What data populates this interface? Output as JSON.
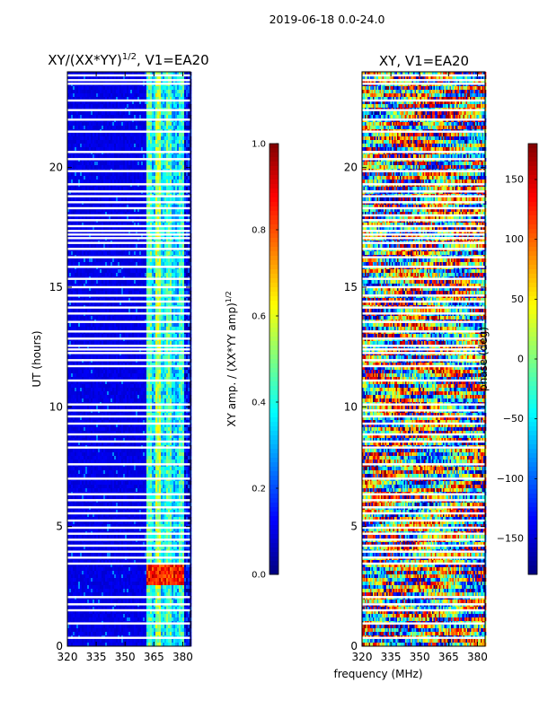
{
  "suptitle": "2019-06-18 0.0-24.0",
  "colors": {
    "jet": [
      "#00007f",
      "#0000ff",
      "#007fff",
      "#00ffff",
      "#7fff7f",
      "#ffff00",
      "#ff7f00",
      "#ff0000",
      "#7f0000"
    ],
    "frame": "#000000",
    "gap": "#ffffff"
  },
  "chart_data": [
    {
      "type": "heatmap",
      "title": "XY/(XX*YY)",
      "title_sup": "1/2",
      "title_suffix": ", V1=EA20",
      "xlabel": "",
      "ylabel": "UT (hours)",
      "xlim": [
        320,
        384
      ],
      "ylim": [
        0,
        24
      ],
      "xticks": [
        320,
        335,
        350,
        365,
        380
      ],
      "yticks": [
        0,
        5,
        10,
        15,
        20
      ],
      "colorbar": {
        "label": "XY amp. / (XX*YY amp)",
        "label_sup": "1/2",
        "range": [
          0.0,
          1.0
        ],
        "ticks": [
          "0.0",
          "0.2",
          "0.4",
          "0.6",
          "0.8",
          "1.0"
        ],
        "tick_values": [
          0.0,
          0.2,
          0.4,
          0.6,
          0.8,
          1.0
        ]
      },
      "band_edges_mhz": [
        320,
        361,
        364,
        366,
        369,
        371,
        374,
        378,
        381,
        384
      ],
      "band_levels": [
        0.1,
        0.45,
        0.32,
        0.55,
        0.35,
        0.45,
        0.32,
        0.42,
        0.12
      ],
      "flare": {
        "ut_range": [
          2.6,
          3.4
        ],
        "mhz_range": [
          361,
          381
        ],
        "value": 0.85
      }
    },
    {
      "type": "heatmap",
      "title": "XY, V1=EA20",
      "xlabel": "frequency (MHz)",
      "ylabel": "",
      "xlim": [
        320,
        384
      ],
      "ylim": [
        0,
        24
      ],
      "xticks": [
        320,
        335,
        350,
        365,
        380
      ],
      "yticks": [
        0,
        5,
        10,
        15,
        20
      ],
      "colorbar": {
        "label": "phase (deg)",
        "range": [
          -180,
          180
        ],
        "ticks": [
          "−150",
          "−100",
          "−50",
          "0",
          "50",
          "100",
          "150"
        ],
        "tick_values": [
          -150,
          -100,
          -50,
          0,
          50,
          100,
          150
        ]
      }
    }
  ],
  "gap_rows_ut": [
    0.35,
    0.95,
    1.5,
    1.75,
    2.05,
    3.45,
    3.7,
    3.95,
    4.2,
    4.45,
    4.7,
    4.95,
    5.25,
    5.55,
    5.8,
    6.1,
    6.35,
    7.0,
    7.6,
    8.3,
    8.55,
    8.85,
    9.3,
    9.6,
    9.85,
    10.1,
    11.1,
    11.7,
    11.95,
    12.25,
    12.4,
    12.55,
    12.85,
    13.15,
    13.55,
    13.9,
    14.15,
    14.4,
    14.65,
    15.0,
    15.35,
    15.85,
    16.25,
    16.6,
    16.85,
    17.05,
    17.2,
    17.35,
    17.55,
    17.8,
    18.0,
    18.3,
    18.55,
    18.8,
    19.0,
    19.3,
    19.85,
    20.35,
    20.65,
    21.5,
    22.0,
    22.4,
    22.8,
    23.5,
    23.65,
    23.85
  ]
}
